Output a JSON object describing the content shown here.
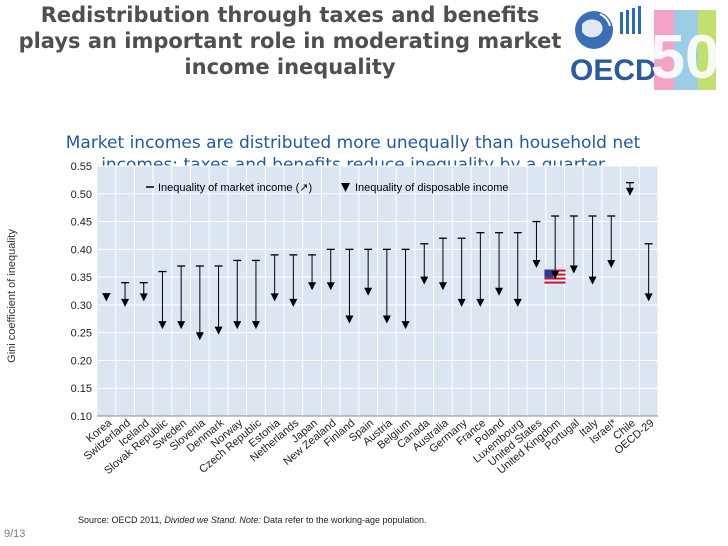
{
  "slide": {
    "title_lines": [
      "Redistribution through taxes and benefits",
      "plays an important role in moderating market",
      "income inequality"
    ],
    "subtitle_lines": [
      "Market incomes are distributed more unequally than household net",
      "incomes: taxes and benefits reduce inequality by a quarter"
    ],
    "page": "9/13",
    "source": {
      "prefix": "Source: OECD 2011, ",
      "italic_title": "Divided we Stand.",
      "note_label": " Note:",
      "suffix": " Data refer to the working-age population."
    },
    "logo": {
      "text": "OECD",
      "anniversary": "50"
    }
  },
  "chart_data": {
    "type": "arrow-range",
    "ylabel": "Gini coefficient of inequality",
    "yticks": [
      "0.10",
      "0.15",
      "0.20",
      "0.25",
      "0.30",
      "0.35",
      "0.40",
      "0.45",
      "0.50",
      "0.55"
    ],
    "ylim": [
      0.1,
      0.55
    ],
    "legend": {
      "market": "Inequality of market income (↗)",
      "disposable": "Inequality of disposable income"
    },
    "highlight": "United States",
    "categories": [
      "Korea",
      "Switzerland",
      "Iceland",
      "Slovak Republic",
      "Sweden",
      "Slovenia",
      "Denmark",
      "Norway",
      "Czech Republic",
      "Estonia",
      "Netherlands",
      "Japan",
      "New Zealand",
      "Finland",
      "Spain",
      "Austria",
      "Belgium",
      "Canada",
      "Australia",
      "Germany",
      "France",
      "Poland",
      "Luxembourg",
      "United States",
      "United Kingdom",
      "Portugal",
      "Italy",
      "Israel*",
      "Chile",
      "OECD-29"
    ],
    "series": [
      {
        "name": "Inequality of market income",
        "values": [
          0.32,
          0.34,
          0.34,
          0.36,
          0.37,
          0.37,
          0.37,
          0.38,
          0.38,
          0.39,
          0.39,
          0.39,
          0.4,
          0.4,
          0.4,
          0.4,
          0.4,
          0.41,
          0.42,
          0.42,
          0.43,
          0.43,
          0.43,
          0.45,
          0.46,
          0.46,
          0.46,
          0.46,
          0.52,
          0.41
        ]
      },
      {
        "name": "Inequality of disposable income",
        "values": [
          0.31,
          0.3,
          0.31,
          0.26,
          0.26,
          0.24,
          0.25,
          0.26,
          0.26,
          0.31,
          0.3,
          0.33,
          0.33,
          0.27,
          0.32,
          0.27,
          0.26,
          0.34,
          0.33,
          0.3,
          0.3,
          0.32,
          0.3,
          0.37,
          0.35,
          0.36,
          0.34,
          0.37,
          0.5,
          0.31
        ]
      }
    ]
  }
}
